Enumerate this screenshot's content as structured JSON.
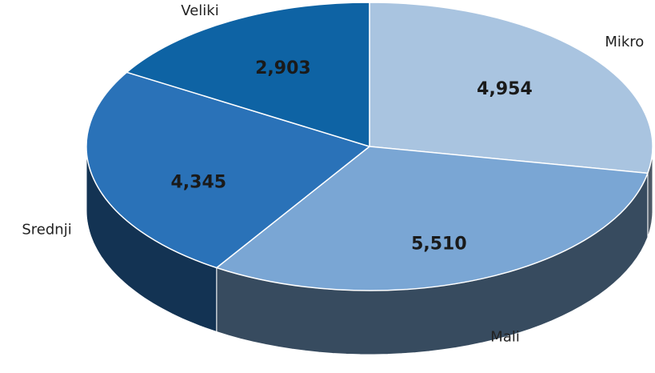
{
  "chart_data": {
    "type": "pie",
    "categories": [
      "Mikro",
      "Mali",
      "Srednji",
      "Veliki"
    ],
    "values": [
      4954,
      5510,
      4345,
      2903
    ],
    "value_labels": [
      "4,954",
      "5,510",
      "4,345",
      "2,903"
    ],
    "colors": [
      "#a9c4e0",
      "#7aa6d4",
      "#2a72b8",
      "#0e63a4"
    ]
  }
}
